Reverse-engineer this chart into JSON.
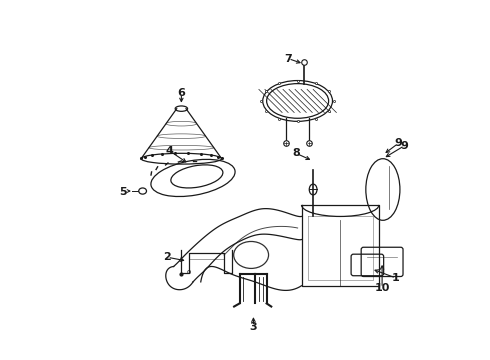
{
  "bg_color": "#ffffff",
  "line_color": "#1a1a1a",
  "figsize": [
    4.9,
    3.6
  ],
  "dpi": 100,
  "label_fontsize": 8
}
